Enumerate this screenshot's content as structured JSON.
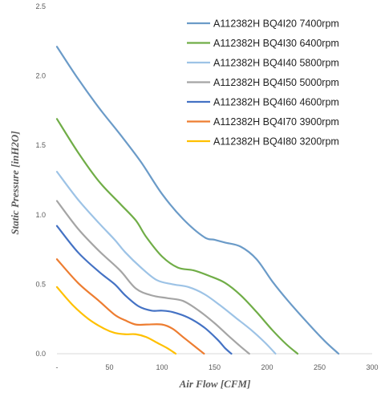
{
  "chart_data": {
    "type": "line",
    "xlabel": "Air Flow [CFM]",
    "ylabel": "Static Pressure [inH2O]",
    "xlim": [
      0,
      300
    ],
    "ylim": [
      0,
      2.5
    ],
    "x_ticks": [
      "-",
      "50",
      "100",
      "150",
      "200",
      "250",
      "300"
    ],
    "y_ticks": [
      "0.0",
      "0.5",
      "1.0",
      "1.5",
      "2.0",
      "2.5"
    ],
    "grid": false,
    "legend_position": "top-right",
    "series": [
      {
        "name": "A112382H BQ4I20 7400rpm",
        "color": "#6B9BC8",
        "points": [
          [
            0,
            2.21
          ],
          [
            20,
            1.98
          ],
          [
            40,
            1.77
          ],
          [
            60,
            1.58
          ],
          [
            80,
            1.38
          ],
          [
            100,
            1.15
          ],
          [
            120,
            0.97
          ],
          [
            140,
            0.84
          ],
          [
            150,
            0.82
          ],
          [
            160,
            0.8
          ],
          [
            175,
            0.77
          ],
          [
            190,
            0.68
          ],
          [
            205,
            0.52
          ],
          [
            220,
            0.38
          ],
          [
            240,
            0.21
          ],
          [
            255,
            0.09
          ],
          [
            268,
            0.0
          ]
        ]
      },
      {
        "name": "A112382H BQ4I30 6400rpm",
        "color": "#70AD47",
        "points": [
          [
            0,
            1.69
          ],
          [
            20,
            1.45
          ],
          [
            40,
            1.24
          ],
          [
            60,
            1.08
          ],
          [
            75,
            0.96
          ],
          [
            85,
            0.84
          ],
          [
            100,
            0.7
          ],
          [
            115,
            0.62
          ],
          [
            130,
            0.6
          ],
          [
            145,
            0.56
          ],
          [
            160,
            0.51
          ],
          [
            175,
            0.42
          ],
          [
            190,
            0.3
          ],
          [
            205,
            0.17
          ],
          [
            218,
            0.07
          ],
          [
            229,
            0.0
          ]
        ]
      },
      {
        "name": "A112382H BQ4I40 5800rpm",
        "color": "#9DC3E6",
        "points": [
          [
            0,
            1.31
          ],
          [
            20,
            1.11
          ],
          [
            40,
            0.94
          ],
          [
            55,
            0.82
          ],
          [
            65,
            0.73
          ],
          [
            80,
            0.62
          ],
          [
            95,
            0.53
          ],
          [
            110,
            0.5
          ],
          [
            125,
            0.48
          ],
          [
            140,
            0.43
          ],
          [
            155,
            0.35
          ],
          [
            170,
            0.26
          ],
          [
            185,
            0.17
          ],
          [
            198,
            0.08
          ],
          [
            208,
            0.0
          ]
        ]
      },
      {
        "name": "A112382H BQ4I50 5000rpm",
        "color": "#A5A5A5",
        "points": [
          [
            0,
            1.1
          ],
          [
            20,
            0.9
          ],
          [
            40,
            0.74
          ],
          [
            60,
            0.6
          ],
          [
            75,
            0.47
          ],
          [
            90,
            0.42
          ],
          [
            105,
            0.4
          ],
          [
            120,
            0.38
          ],
          [
            135,
            0.31
          ],
          [
            150,
            0.22
          ],
          [
            163,
            0.13
          ],
          [
            175,
            0.05
          ],
          [
            183,
            0.0
          ]
        ]
      },
      {
        "name": "A112382H BQ4I60 4600rpm",
        "color": "#4472C4",
        "points": [
          [
            0,
            0.92
          ],
          [
            20,
            0.73
          ],
          [
            40,
            0.59
          ],
          [
            55,
            0.5
          ],
          [
            65,
            0.42
          ],
          [
            78,
            0.34
          ],
          [
            90,
            0.31
          ],
          [
            100,
            0.31
          ],
          [
            110,
            0.3
          ],
          [
            125,
            0.26
          ],
          [
            140,
            0.19
          ],
          [
            153,
            0.1
          ],
          [
            160,
            0.04
          ],
          [
            166,
            0.0
          ]
        ]
      },
      {
        "name": "A112382H BQ4I70 3900rpm",
        "color": "#ED7D31",
        "points": [
          [
            0,
            0.68
          ],
          [
            20,
            0.51
          ],
          [
            40,
            0.38
          ],
          [
            55,
            0.28
          ],
          [
            65,
            0.24
          ],
          [
            75,
            0.21
          ],
          [
            85,
            0.21
          ],
          [
            100,
            0.21
          ],
          [
            110,
            0.18
          ],
          [
            120,
            0.12
          ],
          [
            130,
            0.06
          ],
          [
            140,
            0.0
          ]
        ]
      },
      {
        "name": "A112382H BQ4I80 3200rpm",
        "color": "#FFC000",
        "points": [
          [
            0,
            0.48
          ],
          [
            15,
            0.35
          ],
          [
            30,
            0.25
          ],
          [
            45,
            0.18
          ],
          [
            55,
            0.15
          ],
          [
            65,
            0.14
          ],
          [
            75,
            0.14
          ],
          [
            85,
            0.12
          ],
          [
            95,
            0.08
          ],
          [
            105,
            0.04
          ],
          [
            113,
            0.0
          ]
        ]
      }
    ]
  }
}
